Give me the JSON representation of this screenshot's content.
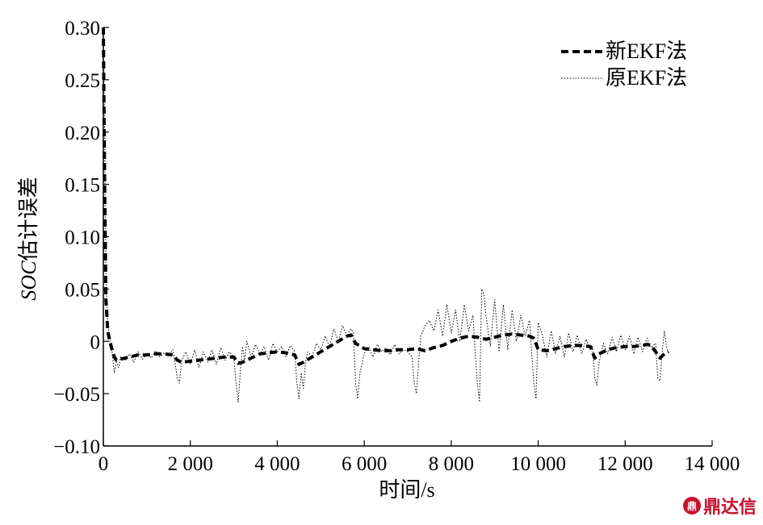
{
  "chart_data": {
    "type": "line",
    "xlabel": "时间/s",
    "ylabel_italic": "SOC",
    "ylabel_rest": "估计误差",
    "xlim": [
      0,
      14000
    ],
    "ylim": [
      -0.1,
      0.3
    ],
    "x_ticks": [
      0,
      2000,
      4000,
      6000,
      8000,
      10000,
      12000,
      14000
    ],
    "x_tick_labels": [
      "0",
      "2 000",
      "4 000",
      "6 000",
      "8 000",
      "10 000",
      "12 000",
      "14 000"
    ],
    "y_ticks": [
      -0.1,
      -0.05,
      0,
      0.05,
      0.1,
      0.15,
      0.2,
      0.25,
      0.3
    ],
    "y_tick_labels": [
      "−0.10",
      "−0.05",
      "0",
      "0.05",
      "0.10",
      "0.15",
      "0.20",
      "0.25",
      "0.30"
    ],
    "grid": false,
    "legend_position": "top-right",
    "series": [
      {
        "name": "新EKF法",
        "style": "dashed-thick",
        "x": [
          0,
          30,
          60,
          100,
          150,
          200,
          250,
          300,
          400,
          600,
          800,
          1000,
          1200,
          1400,
          1600,
          1700,
          1800,
          2000,
          2200,
          2400,
          2600,
          2800,
          3000,
          3100,
          3200,
          3400,
          3600,
          3800,
          4000,
          4200,
          4400,
          4500,
          4600,
          4800,
          5000,
          5200,
          5400,
          5600,
          5700,
          5800,
          6000,
          6200,
          6400,
          6600,
          6800,
          7000,
          7200,
          7400,
          7600,
          7800,
          8000,
          8200,
          8400,
          8600,
          8800,
          9000,
          9200,
          9400,
          9600,
          9800,
          9900,
          10000,
          10200,
          10400,
          10600,
          10800,
          11000,
          11200,
          11300,
          11400,
          11600,
          11800,
          12000,
          12200,
          12400,
          12500,
          12600,
          12700,
          12800,
          12900,
          13000
        ],
        "y": [
          0.3,
          0.15,
          0.04,
          0.01,
          0.0,
          -0.008,
          -0.015,
          -0.018,
          -0.017,
          -0.015,
          -0.013,
          -0.013,
          -0.012,
          -0.012,
          -0.013,
          -0.018,
          -0.02,
          -0.019,
          -0.018,
          -0.017,
          -0.016,
          -0.015,
          -0.015,
          -0.021,
          -0.02,
          -0.016,
          -0.012,
          -0.011,
          -0.01,
          -0.011,
          -0.013,
          -0.022,
          -0.02,
          -0.015,
          -0.01,
          -0.005,
          0.0,
          0.005,
          0.006,
          -0.002,
          -0.007,
          -0.008,
          -0.009,
          -0.009,
          -0.008,
          -0.008,
          -0.007,
          -0.009,
          -0.006,
          -0.004,
          0.0,
          0.003,
          0.005,
          0.004,
          0.002,
          0.004,
          0.006,
          0.007,
          0.006,
          0.005,
          0.003,
          -0.008,
          -0.009,
          -0.007,
          -0.005,
          -0.004,
          -0.004,
          -0.005,
          -0.016,
          -0.012,
          -0.008,
          -0.006,
          -0.005,
          -0.005,
          -0.004,
          -0.003,
          -0.004,
          -0.01,
          -0.016,
          -0.012,
          -0.01
        ]
      },
      {
        "name": "原EKF法",
        "style": "dotted-thin",
        "x": [
          0,
          30,
          60,
          100,
          150,
          200,
          250,
          300,
          350,
          400,
          500,
          600,
          700,
          800,
          900,
          1000,
          1100,
          1200,
          1300,
          1400,
          1500,
          1600,
          1700,
          1750,
          1800,
          1900,
          2000,
          2100,
          2200,
          2300,
          2400,
          2500,
          2600,
          2700,
          2800,
          2900,
          3000,
          3050,
          3100,
          3150,
          3200,
          3250,
          3300,
          3400,
          3500,
          3600,
          3700,
          3800,
          3900,
          4000,
          4100,
          4200,
          4300,
          4400,
          4450,
          4500,
          4550,
          4600,
          4650,
          4700,
          4800,
          4900,
          5000,
          5100,
          5200,
          5300,
          5400,
          5500,
          5600,
          5700,
          5750,
          5800,
          5850,
          5900,
          6000,
          6100,
          6200,
          6300,
          6400,
          6500,
          6600,
          6700,
          6800,
          6900,
          7000,
          7100,
          7150,
          7200,
          7250,
          7300,
          7400,
          7500,
          7600,
          7700,
          7800,
          7900,
          8000,
          8100,
          8200,
          8300,
          8400,
          8500,
          8550,
          8600,
          8650,
          8700,
          8750,
          8800,
          8900,
          9000,
          9100,
          9200,
          9300,
          9400,
          9500,
          9600,
          9700,
          9800,
          9850,
          9900,
          9950,
          10000,
          10100,
          10200,
          10300,
          10400,
          10500,
          10600,
          10700,
          10800,
          10900,
          11000,
          11100,
          11200,
          11250,
          11300,
          11350,
          11400,
          11500,
          11600,
          11700,
          11800,
          11900,
          12000,
          12100,
          12200,
          12300,
          12400,
          12500,
          12600,
          12700,
          12750,
          12800,
          12850,
          12900,
          12950,
          13000
        ],
        "y": [
          0.3,
          0.2,
          0.06,
          0.02,
          0.0,
          -0.01,
          -0.03,
          -0.02,
          -0.025,
          -0.015,
          -0.018,
          -0.012,
          -0.02,
          -0.01,
          -0.017,
          -0.012,
          -0.016,
          -0.009,
          -0.015,
          -0.011,
          -0.014,
          -0.008,
          -0.035,
          -0.04,
          -0.018,
          -0.01,
          -0.022,
          -0.008,
          -0.025,
          -0.01,
          -0.02,
          -0.008,
          -0.022,
          -0.006,
          -0.018,
          -0.01,
          -0.015,
          -0.04,
          -0.058,
          -0.03,
          -0.005,
          -0.018,
          0.0,
          -0.015,
          -0.003,
          -0.012,
          -0.005,
          -0.018,
          -0.002,
          -0.01,
          -0.005,
          -0.015,
          -0.004,
          -0.01,
          -0.04,
          -0.055,
          -0.03,
          -0.045,
          -0.02,
          -0.01,
          -0.015,
          -0.002,
          -0.008,
          0.005,
          -0.005,
          0.012,
          0.0,
          0.015,
          0.005,
          0.012,
          0.008,
          -0.04,
          -0.055,
          -0.03,
          -0.012,
          -0.005,
          -0.015,
          -0.003,
          -0.01,
          -0.006,
          -0.013,
          -0.003,
          -0.012,
          -0.008,
          -0.01,
          -0.015,
          -0.04,
          -0.05,
          -0.02,
          0.005,
          0.015,
          0.02,
          0.01,
          0.03,
          0.005,
          0.035,
          0.008,
          0.03,
          0.0,
          0.035,
          0.01,
          0.025,
          -0.01,
          -0.04,
          -0.058,
          0.05,
          0.045,
          0.025,
          -0.005,
          0.04,
          -0.01,
          0.035,
          -0.008,
          0.03,
          0.0,
          0.025,
          0.005,
          0.02,
          -0.01,
          -0.04,
          -0.055,
          0.018,
          0.005,
          -0.015,
          0.01,
          -0.012,
          0.005,
          -0.015,
          0.008,
          -0.01,
          0.006,
          -0.012,
          0.002,
          -0.008,
          -0.005,
          -0.035,
          -0.042,
          -0.02,
          -0.002,
          -0.012,
          0.004,
          -0.01,
          0.006,
          -0.008,
          0.005,
          -0.012,
          0.004,
          -0.01,
          0.003,
          -0.006,
          -0.002,
          -0.035,
          -0.038,
          -0.01,
          0.01,
          -0.005,
          -0.012
        ]
      }
    ]
  },
  "watermark": {
    "icon_text": "鼎",
    "text": "鼎达信",
    "color": "#c8102e"
  }
}
